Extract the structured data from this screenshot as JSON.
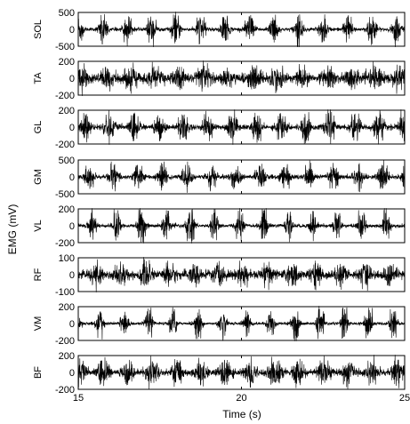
{
  "chart_data": {
    "type": "line",
    "xlabel": "Time (s)",
    "ylabel": "EMG (mV)",
    "xlim": [
      15,
      25
    ],
    "x_ticks": [
      15,
      20,
      25
    ],
    "stride_period_s": 0.75,
    "panels": [
      {
        "name": "SOL",
        "ylim": [
          -500,
          500
        ],
        "yticks": [
          -500,
          0,
          500
        ],
        "peak_amplitude": 450,
        "baseline_noise": 25,
        "burst_width_s": 0.22
      },
      {
        "name": "TA",
        "ylim": [
          -200,
          200
        ],
        "yticks": [
          -200,
          0,
          200
        ],
        "peak_amplitude": 110,
        "baseline_noise": 25,
        "burst_width_s": 0.35
      },
      {
        "name": "GL",
        "ylim": [
          -200,
          200
        ],
        "yticks": [
          -200,
          0,
          200
        ],
        "peak_amplitude": 170,
        "baseline_noise": 15,
        "burst_width_s": 0.25
      },
      {
        "name": "GM",
        "ylim": [
          -500,
          500
        ],
        "yticks": [
          -500,
          0,
          500
        ],
        "peak_amplitude": 380,
        "baseline_noise": 30,
        "burst_width_s": 0.25
      },
      {
        "name": "VL",
        "ylim": [
          -200,
          200
        ],
        "yticks": [
          -200,
          0,
          200
        ],
        "peak_amplitude": 200,
        "baseline_noise": 10,
        "burst_width_s": 0.2
      },
      {
        "name": "RF",
        "ylim": [
          -100,
          100
        ],
        "yticks": [
          -100,
          0,
          100
        ],
        "peak_amplitude": 65,
        "baseline_noise": 12,
        "burst_width_s": 0.28
      },
      {
        "name": "VM",
        "ylim": [
          -200,
          200
        ],
        "yticks": [
          -200,
          0,
          200
        ],
        "peak_amplitude": 190,
        "baseline_noise": 8,
        "burst_width_s": 0.2
      },
      {
        "name": "BF",
        "ylim": [
          -200,
          200
        ],
        "yticks": [
          -200,
          0,
          200
        ],
        "peak_amplitude": 150,
        "baseline_noise": 18,
        "burst_width_s": 0.3
      }
    ]
  }
}
